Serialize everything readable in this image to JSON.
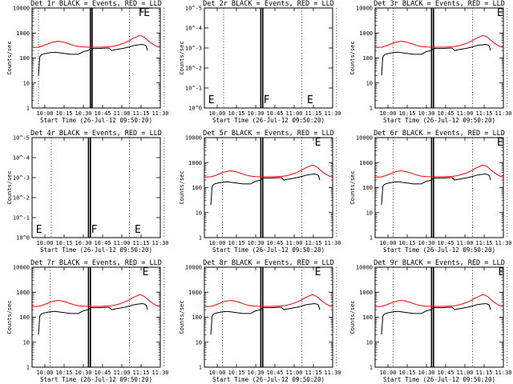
{
  "panels": [
    {
      "id": "1",
      "title": "Det 1r BLACK = Events, RED = LLD",
      "ylabel": "Counts/sec",
      "xlabel": "Start Time (26-Jul-12 09:50:20)",
      "scale": "log",
      "yticks": [
        "1",
        "10",
        "100",
        "1000",
        "10000"
      ],
      "flags": [
        {
          "label": "F",
          "t": 83
        },
        {
          "label": "E",
          "t": 87
        }
      ],
      "markers": {
        "mode": "events",
        "vertical_lines_t": [
          5,
          45.5,
          46.8,
          76,
          103
        ]
      }
    },
    {
      "id": "2",
      "title": "Det 2r BLACK = Events, RED = LLD",
      "ylabel": "Counts/sec",
      "xlabel": "Start Time (26-Jul-12 09:50:20)",
      "scale": "sci",
      "yticks": [
        "10^0",
        "10^-1",
        "10^-2",
        "10^-3",
        "10^-4",
        "10^-5"
      ],
      "flags": [
        {
          "label": "E",
          "t": 3
        },
        {
          "label": "F",
          "t": 46
        },
        {
          "label": "E",
          "t": 80
        }
      ],
      "markers": {
        "mode": "empty",
        "vertical_lines_t": [
          15,
          44,
          45.5,
          76,
          103
        ]
      }
    },
    {
      "id": "3",
      "title": "Det 3r BLACK = Events, RED = LLD",
      "ylabel": "Counts/sec",
      "xlabel": "Start Time (26-Jul-12 09:50:20)",
      "scale": "log",
      "yticks": [
        "1",
        "10",
        "100",
        "1000",
        "10000"
      ],
      "flags": [
        {
          "label": "E",
          "t": 95
        }
      ],
      "markers": {
        "mode": "events",
        "vertical_lines_t": [
          14,
          44,
          45.5,
          76,
          103
        ]
      }
    },
    {
      "id": "4",
      "title": "Det 4r BLACK = Events, RED = LLD",
      "ylabel": "Counts/sec",
      "xlabel": "Start Time (26-Jul-12 09:50:20)",
      "scale": "sci",
      "yticks": [
        "10^0",
        "10^-1",
        "10^-2",
        "10^-3",
        "10^-4",
        "10^-5"
      ],
      "flags": [
        {
          "label": "E",
          "t": 3
        },
        {
          "label": "F",
          "t": 46
        },
        {
          "label": "E",
          "t": 80
        }
      ],
      "markers": {
        "mode": "empty",
        "vertical_lines_t": [
          15,
          44,
          45.5,
          76,
          103
        ]
      }
    },
    {
      "id": "5",
      "title": "Det 5r BLACK = Events, RED = LLD",
      "ylabel": "Counts/sec",
      "xlabel": "Start Time (26-Jul-12 09:50:20)",
      "scale": "log",
      "yticks": [
        "1",
        "10",
        "100",
        "1000",
        "10000"
      ],
      "flags": [
        {
          "label": "E",
          "t": 86
        }
      ],
      "markers": {
        "mode": "events",
        "vertical_lines_t": [
          14,
          44,
          45.5,
          76,
          103
        ]
      }
    },
    {
      "id": "6",
      "title": "Det 6r BLACK = Events, RED = LLD",
      "ylabel": "Counts/sec",
      "xlabel": "Start Time (26-Jul-12 09:50:20)",
      "scale": "log",
      "yticks": [
        "1",
        "10",
        "100",
        "1000",
        "10000"
      ],
      "flags": [
        {
          "label": "E",
          "t": 95
        }
      ],
      "markers": {
        "mode": "events",
        "vertical_lines_t": [
          14,
          44,
          45.5,
          76,
          103
        ]
      }
    },
    {
      "id": "7",
      "title": "Det 7r BLACK = Events, RED = LLD",
      "ylabel": "Counts/sec",
      "xlabel": "Start Time (26-Jul-12 09:50:20)",
      "scale": "log",
      "yticks": [
        "1",
        "10",
        "100",
        "1000",
        "10000"
      ],
      "flags": [
        {
          "label": "E",
          "t": 86
        }
      ],
      "markers": {
        "mode": "events",
        "vertical_lines_t": [
          14,
          44,
          45.5,
          76,
          103
        ]
      }
    },
    {
      "id": "8",
      "title": "Det 8r BLACK = Events, RED = LLD",
      "ylabel": "Counts/sec",
      "xlabel": "Start Time (26-Jul-12 09:50:20)",
      "scale": "log",
      "yticks": [
        "1",
        "10",
        "100",
        "1000",
        "10000"
      ],
      "flags": [
        {
          "label": "E",
          "t": 86
        }
      ],
      "markers": {
        "mode": "events",
        "vertical_lines_t": [
          14,
          44,
          45.5,
          76,
          103
        ]
      }
    },
    {
      "id": "9",
      "title": "Det 9r BLACK = Events, RED = LLD",
      "ylabel": "Counts/sec",
      "xlabel": "Start Time (26-Jul-12 09:50:20)",
      "scale": "log",
      "yticks": [
        "1",
        "10",
        "100",
        "1000",
        "10000"
      ],
      "flags": [
        {
          "label": "E",
          "t": 96
        }
      ],
      "markers": {
        "mode": "events",
        "vertical_lines_t": [
          14,
          44,
          45.5,
          76,
          103
        ]
      }
    }
  ],
  "chart_data": {
    "type": "line",
    "layout": "3x3 grid",
    "x_units": "minutes since 09:50:20",
    "xlim": [
      0,
      100
    ],
    "xtick_labels": [
      "10:00",
      "10:15",
      "10:30",
      "10:45",
      "11:00",
      "11:15",
      "11:30"
    ],
    "xtick_minutes": [
      10,
      25,
      40,
      55,
      70,
      85,
      100
    ],
    "ylim_log": [
      1,
      10000
    ],
    "series_template": {
      "red": {
        "name": "LLD",
        "color": "#ff0000",
        "x": [
          0,
          5,
          8,
          12,
          16,
          20,
          24,
          28,
          32,
          36,
          40,
          44,
          48,
          52,
          56,
          60,
          64,
          68,
          72,
          76,
          78,
          80,
          82,
          84,
          86,
          88,
          90,
          92,
          94,
          96,
          98,
          100
        ],
        "y": [
          260,
          270,
          300,
          360,
          430,
          470,
          440,
          380,
          320,
          290,
          275,
          270,
          270,
          270,
          275,
          280,
          300,
          340,
          400,
          500,
          580,
          650,
          720,
          800,
          750,
          650,
          520,
          430,
          360,
          310,
          280,
          260
        ]
      },
      "black": {
        "name": "Events",
        "color": "#000000",
        "x": [
          5,
          6,
          7,
          8,
          10,
          14,
          18,
          22,
          26,
          30,
          36,
          40,
          44,
          45,
          46,
          48,
          52,
          56,
          58,
          60,
          62,
          64,
          68,
          72,
          76,
          78,
          80,
          82,
          84,
          86,
          88,
          89,
          90
        ],
        "y": [
          20,
          110,
          130,
          140,
          150,
          165,
          170,
          160,
          150,
          140,
          140,
          180,
          200,
          230,
          240,
          240,
          240,
          245,
          250,
          250,
          200,
          210,
          230,
          250,
          280,
          300,
          320,
          330,
          340,
          350,
          330,
          300,
          200
        ]
      }
    },
    "series_by_panel": {
      "1": [
        "red",
        "black"
      ],
      "2": [],
      "3": [
        "red",
        "black"
      ],
      "4": [],
      "5": [
        "red",
        "black"
      ],
      "6": [
        "red",
        "black"
      ],
      "7": [
        "red",
        "black"
      ],
      "8": [
        "red",
        "black"
      ],
      "9": [
        "red",
        "black"
      ]
    },
    "legend": "in title (BLACK = Events, RED = LLD)"
  }
}
